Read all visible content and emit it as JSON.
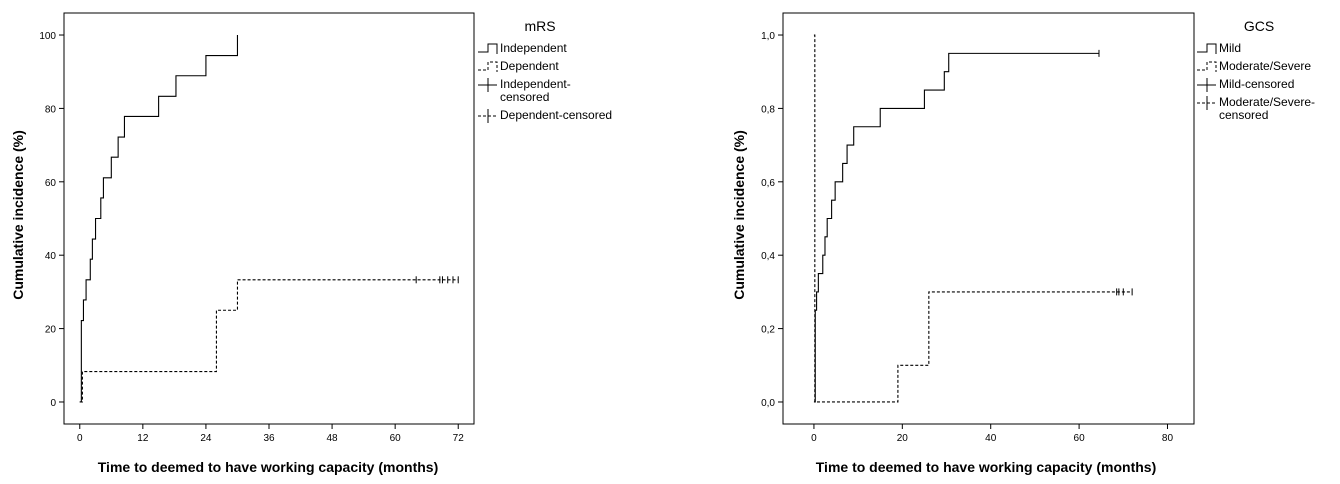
{
  "chart_data": [
    {
      "type": "line",
      "xlabel": "Time to deemed to have working capacity (months)",
      "ylabel": "Cumulative incidence (%)",
      "xlim": [
        -3,
        75
      ],
      "ylim": [
        -6,
        106
      ],
      "xticks": [
        0,
        12,
        24,
        36,
        48,
        60,
        72
      ],
      "xtick_labels": [
        "0",
        "12",
        "24",
        "36",
        "48",
        "60",
        "72"
      ],
      "yticks": [
        0,
        20,
        40,
        60,
        80,
        100
      ],
      "ytick_labels": [
        "0",
        "20",
        "40",
        "60",
        "80",
        "100"
      ],
      "grid": false,
      "legend": {
        "title": "mRS",
        "placement": "right-outside-top",
        "entries": [
          {
            "label": "Independent",
            "style": "solid-step"
          },
          {
            "label": "Dependent",
            "style": "dashed-step"
          },
          {
            "label": "Independent-censored",
            "style": "solid-censor",
            "lines": [
              "Independent-",
              "censored"
            ]
          },
          {
            "label": "Dependent-censored",
            "style": "dashed-censor",
            "lines": [
              "Dependent-censored"
            ]
          }
        ]
      },
      "series": [
        {
          "name": "Independent",
          "style": "solid",
          "x": [
            0,
            0.3,
            0.7,
            1.2,
            2.0,
            2.4,
            3.0,
            4.0,
            4.5,
            6.0,
            7.3,
            8.5,
            15.0,
            18.3,
            24.0,
            30.0
          ],
          "y": [
            0,
            22.2,
            27.8,
            33.3,
            38.9,
            44.4,
            50.0,
            55.6,
            61.1,
            66.7,
            72.2,
            77.8,
            83.3,
            88.9,
            94.4,
            100.0
          ],
          "end_x": 30.0,
          "censored_x": []
        },
        {
          "name": "Dependent",
          "style": "dashed",
          "x": [
            0,
            0.5,
            26.0,
            30.0
          ],
          "y": [
            0,
            8.3,
            25.0,
            33.3
          ],
          "end_x": 72.0,
          "censored_x": [
            64.0,
            68.5,
            69.0,
            70.0,
            71.0,
            72.0
          ]
        }
      ]
    },
    {
      "type": "line",
      "xlabel": "Time to deemed to have working capacity (months)",
      "ylabel": "Cumulative incidence (%)",
      "xlim": [
        -7,
        86
      ],
      "ylim": [
        -0.06,
        1.06
      ],
      "xticks": [
        0,
        20,
        40,
        60,
        80
      ],
      "xtick_labels": [
        "0",
        "20",
        "40",
        "60",
        "80"
      ],
      "yticks": [
        0,
        0.2,
        0.4,
        0.6,
        0.8,
        1.0
      ],
      "ytick_labels": [
        "0,0",
        "0,2",
        "0,4",
        "0,6",
        "0,8",
        "1,0"
      ],
      "grid": false,
      "legend": {
        "title": "GCS",
        "placement": "right-outside-top",
        "entries": [
          {
            "label": "Mild",
            "style": "solid-step",
            "lines": [
              "Mild"
            ]
          },
          {
            "label": "Moderate/Severe",
            "style": "dashed-step",
            "lines": [
              "Moderate/Severe"
            ]
          },
          {
            "label": "Mild-censored",
            "style": "solid-censor",
            "lines": [
              "Mild-censored"
            ]
          },
          {
            "label": "Moderate/Severe-censored",
            "style": "dashed-censor",
            "lines": [
              "Moderate/Severe-",
              "censored"
            ]
          }
        ]
      },
      "series": [
        {
          "name": "Mild",
          "style": "solid",
          "x": [
            0,
            0.3,
            0.6,
            1.0,
            2.0,
            2.5,
            3.0,
            4.0,
            4.8,
            6.5,
            7.5,
            9.0,
            15.0,
            25.0,
            29.5,
            30.5
          ],
          "y": [
            0,
            0.25,
            0.3,
            0.35,
            0.4,
            0.45,
            0.5,
            0.55,
            0.6,
            0.65,
            0.7,
            0.75,
            0.8,
            0.85,
            0.9,
            0.95
          ],
          "end_x": 64.5,
          "censored_x": [
            64.5
          ]
        },
        {
          "name": "Moderate/Severe",
          "style": "dashed",
          "x": [
            0,
            0.2,
            19.0,
            26.0
          ],
          "y": [
            1.0,
            0,
            0.1,
            0.3
          ],
          "end_x": 72.0,
          "censored_x": [
            68.5,
            69.0,
            70.0,
            72.0
          ]
        }
      ]
    }
  ]
}
